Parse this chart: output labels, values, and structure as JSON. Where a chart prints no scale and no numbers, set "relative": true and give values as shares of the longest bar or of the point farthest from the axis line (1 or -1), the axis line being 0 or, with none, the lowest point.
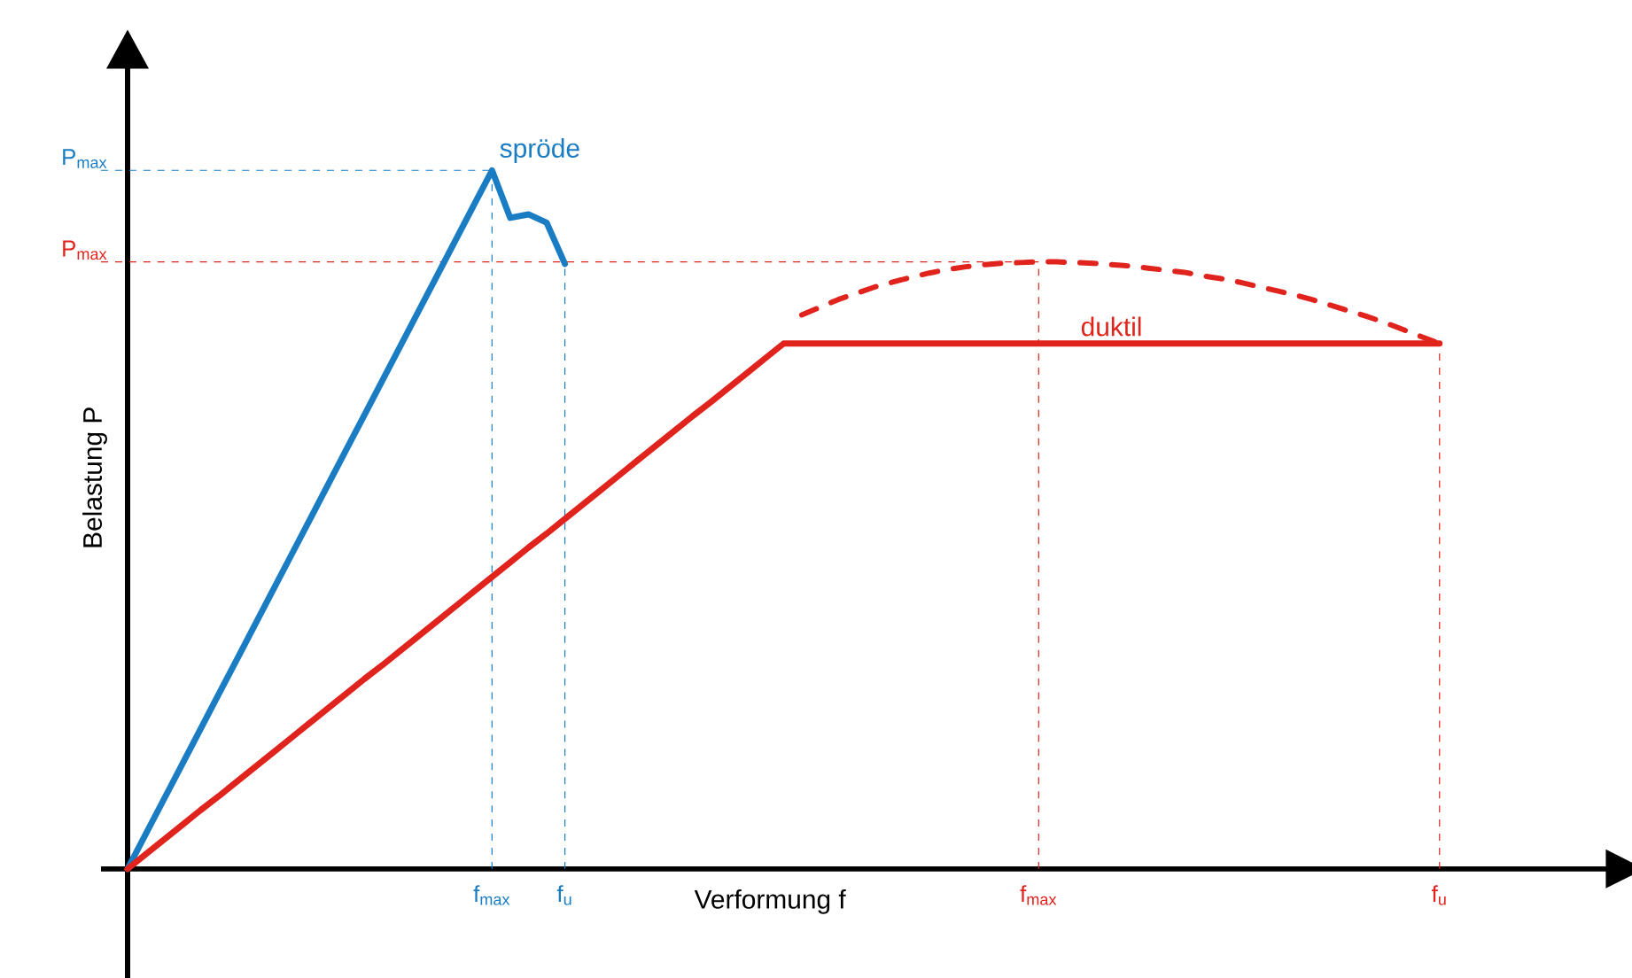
{
  "chart_data": {
    "type": "line",
    "relative": true,
    "xlabel": "Verformung f",
    "ylabel": "Belastung P",
    "grid": "x",
    "categories": [
      null,
      null,
      null,
      null,
      null,
      null,
      null,
      null,
      null,
      null,
      null,
      null,
      null,
      null,
      null,
      null,
      null,
      null,
      null,
      null,
      "f$_{max}$",
      null,
      null,
      null,
      "f$_{u}$",
      null,
      null,
      null,
      null,
      null,
      null,
      null,
      null,
      null,
      null,
      null,
      null,
      null,
      null,
      null,
      null,
      null,
      null,
      null,
      null,
      null,
      null,
      null,
      null,
      null,
      "f$_{max}$",
      null,
      null,
      null,
      null,
      null,
      null,
      null,
      null,
      null,
      null,
      null,
      null,
      null,
      null,
      null,
      null,
      null,
      null,
      null,
      null,
      null,
      "f$_{u}$",
      null,
      null,
      null,
      null,
      null,
      null,
      null,
      null,
      null
    ],
    "series": [
      {
        "name": "spröde",
        "color": "#1a7dc4",
        "values": [
          0,
          0.05,
          0.1,
          0.15,
          0.2,
          0.25,
          0.3,
          0.35,
          0.4,
          0.45,
          0.5,
          0.55,
          0.6,
          0.65,
          0.7,
          0.75,
          0.8,
          0.85,
          0.9,
          0.95,
          1,
          0.932,
          0.937,
          0.925,
          0.866,
          null,
          null,
          null,
          null,
          null,
          null,
          null,
          null,
          null,
          null,
          null,
          null,
          null,
          null,
          null,
          null,
          null,
          null,
          null,
          null,
          null,
          null,
          null,
          null,
          null,
          null,
          null,
          null,
          null,
          null,
          null,
          null,
          null,
          null,
          null,
          null,
          null,
          null,
          null,
          null,
          null,
          null,
          null,
          null,
          null,
          null,
          null,
          null,
          null,
          null,
          null,
          null,
          null,
          null,
          null,
          null,
          null
        ]
      },
      {
        "name": "duktil",
        "color": "#e0231c",
        "values": [
          0,
          0.021,
          0.042,
          0.063,
          0.084,
          0.104,
          0.125,
          0.146,
          0.167,
          0.188,
          0.209,
          0.23,
          0.251,
          0.272,
          0.292,
          0.313,
          0.334,
          0.355,
          0.376,
          0.397,
          0.418,
          0.439,
          0.46,
          0.48,
          0.501,
          0.522,
          0.543,
          0.564,
          0.585,
          0.606,
          0.627,
          0.648,
          0.668,
          0.689,
          0.71,
          0.731,
          0.752,
          0.752,
          0.752,
          0.752,
          0.752,
          0.752,
          0.752,
          0.752,
          0.752,
          0.752,
          0.752,
          0.752,
          0.752,
          0.752,
          0.752,
          0.752,
          0.752,
          0.752,
          0.752,
          0.752,
          0.752,
          0.752,
          0.752,
          0.752,
          0.752,
          0.752,
          0.752,
          0.752,
          0.752,
          0.752,
          0.752,
          0.752,
          0.752,
          0.752,
          0.752,
          0.752,
          0.752,
          null,
          null,
          null,
          null,
          null,
          null,
          null,
          null,
          null
        ]
      },
      {
        "color": "#e0231c",
        "line_style": "dashed",
        "values": [
          null,
          null,
          null,
          null,
          null,
          null,
          null,
          null,
          null,
          null,
          null,
          null,
          null,
          null,
          null,
          null,
          null,
          null,
          null,
          null,
          null,
          null,
          null,
          null,
          null,
          null,
          null,
          null,
          null,
          null,
          null,
          null,
          null,
          null,
          null,
          null,
          null,
          0.793,
          0.804,
          0.815,
          0.824,
          0.833,
          0.84,
          0.847,
          0.853,
          0.858,
          0.862,
          0.865,
          0.867,
          0.868,
          0.869,
          0.869,
          0.868,
          0.867,
          0.865,
          0.863,
          0.86,
          0.857,
          0.854,
          0.849,
          0.845,
          0.84,
          0.834,
          0.828,
          0.822,
          0.815,
          0.807,
          0.799,
          0.791,
          0.782,
          0.772,
          0.762,
          0.752,
          null,
          null,
          null,
          null,
          null,
          null,
          null,
          null,
          null
        ]
      }
    ],
    "ref_lines": [
      {
        "axis": "y",
        "value": 1,
        "label": "P$_{max}$",
        "color": "#1a7dc4",
        "line_style": "dashed"
      },
      {
        "axis": "y",
        "value": 0.869,
        "label": "P$_{max}$",
        "color": "#e0231c",
        "line_style": "dashed"
      }
    ]
  }
}
